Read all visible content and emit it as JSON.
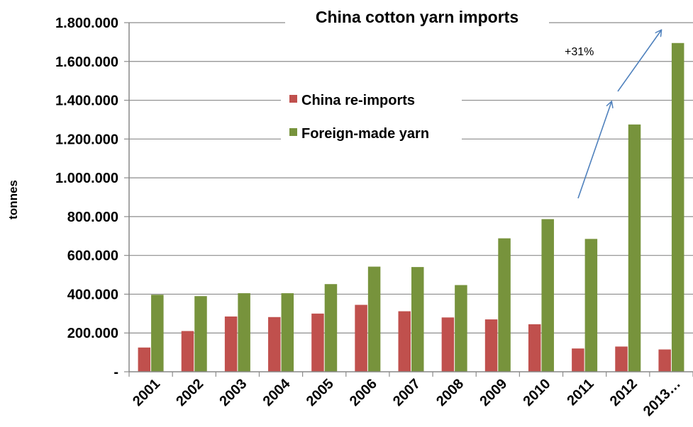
{
  "chart_data": {
    "type": "bar",
    "title": "China cotton yarn imports",
    "ylabel": "tonnes",
    "xlabel": "",
    "categories": [
      "2001",
      "2002",
      "2003",
      "2004",
      "2005",
      "2006",
      "2007",
      "2008",
      "2009",
      "2010",
      "2011",
      "2012",
      "2013…"
    ],
    "series": [
      {
        "name": "China re-imports",
        "color": "#c0504d",
        "values": [
          125000,
          210000,
          285000,
          282000,
          300000,
          345000,
          312000,
          280000,
          270000,
          245000,
          120000,
          130000,
          115000
        ]
      },
      {
        "name": "Foreign-made yarn",
        "color": "#77933c",
        "values": [
          397000,
          390000,
          405000,
          405000,
          452000,
          542000,
          540000,
          447000,
          688000,
          787000,
          685000,
          1275000,
          1695000
        ]
      }
    ],
    "ylim": [
      0,
      1800000
    ],
    "yticks": [
      0,
      200000,
      400000,
      600000,
      800000,
      1000000,
      1200000,
      1400000,
      1600000,
      1800000
    ],
    "ytick_labels": [
      "-",
      "200.000",
      "400.000",
      "600.000",
      "800.000",
      "1.000.000",
      "1.200.000",
      "1.400.000",
      "1.600.000",
      "1.800.000"
    ],
    "grid": true,
    "legend_position": "top-center",
    "annotation": "+31%",
    "arrow_color": "#4f81bd"
  }
}
